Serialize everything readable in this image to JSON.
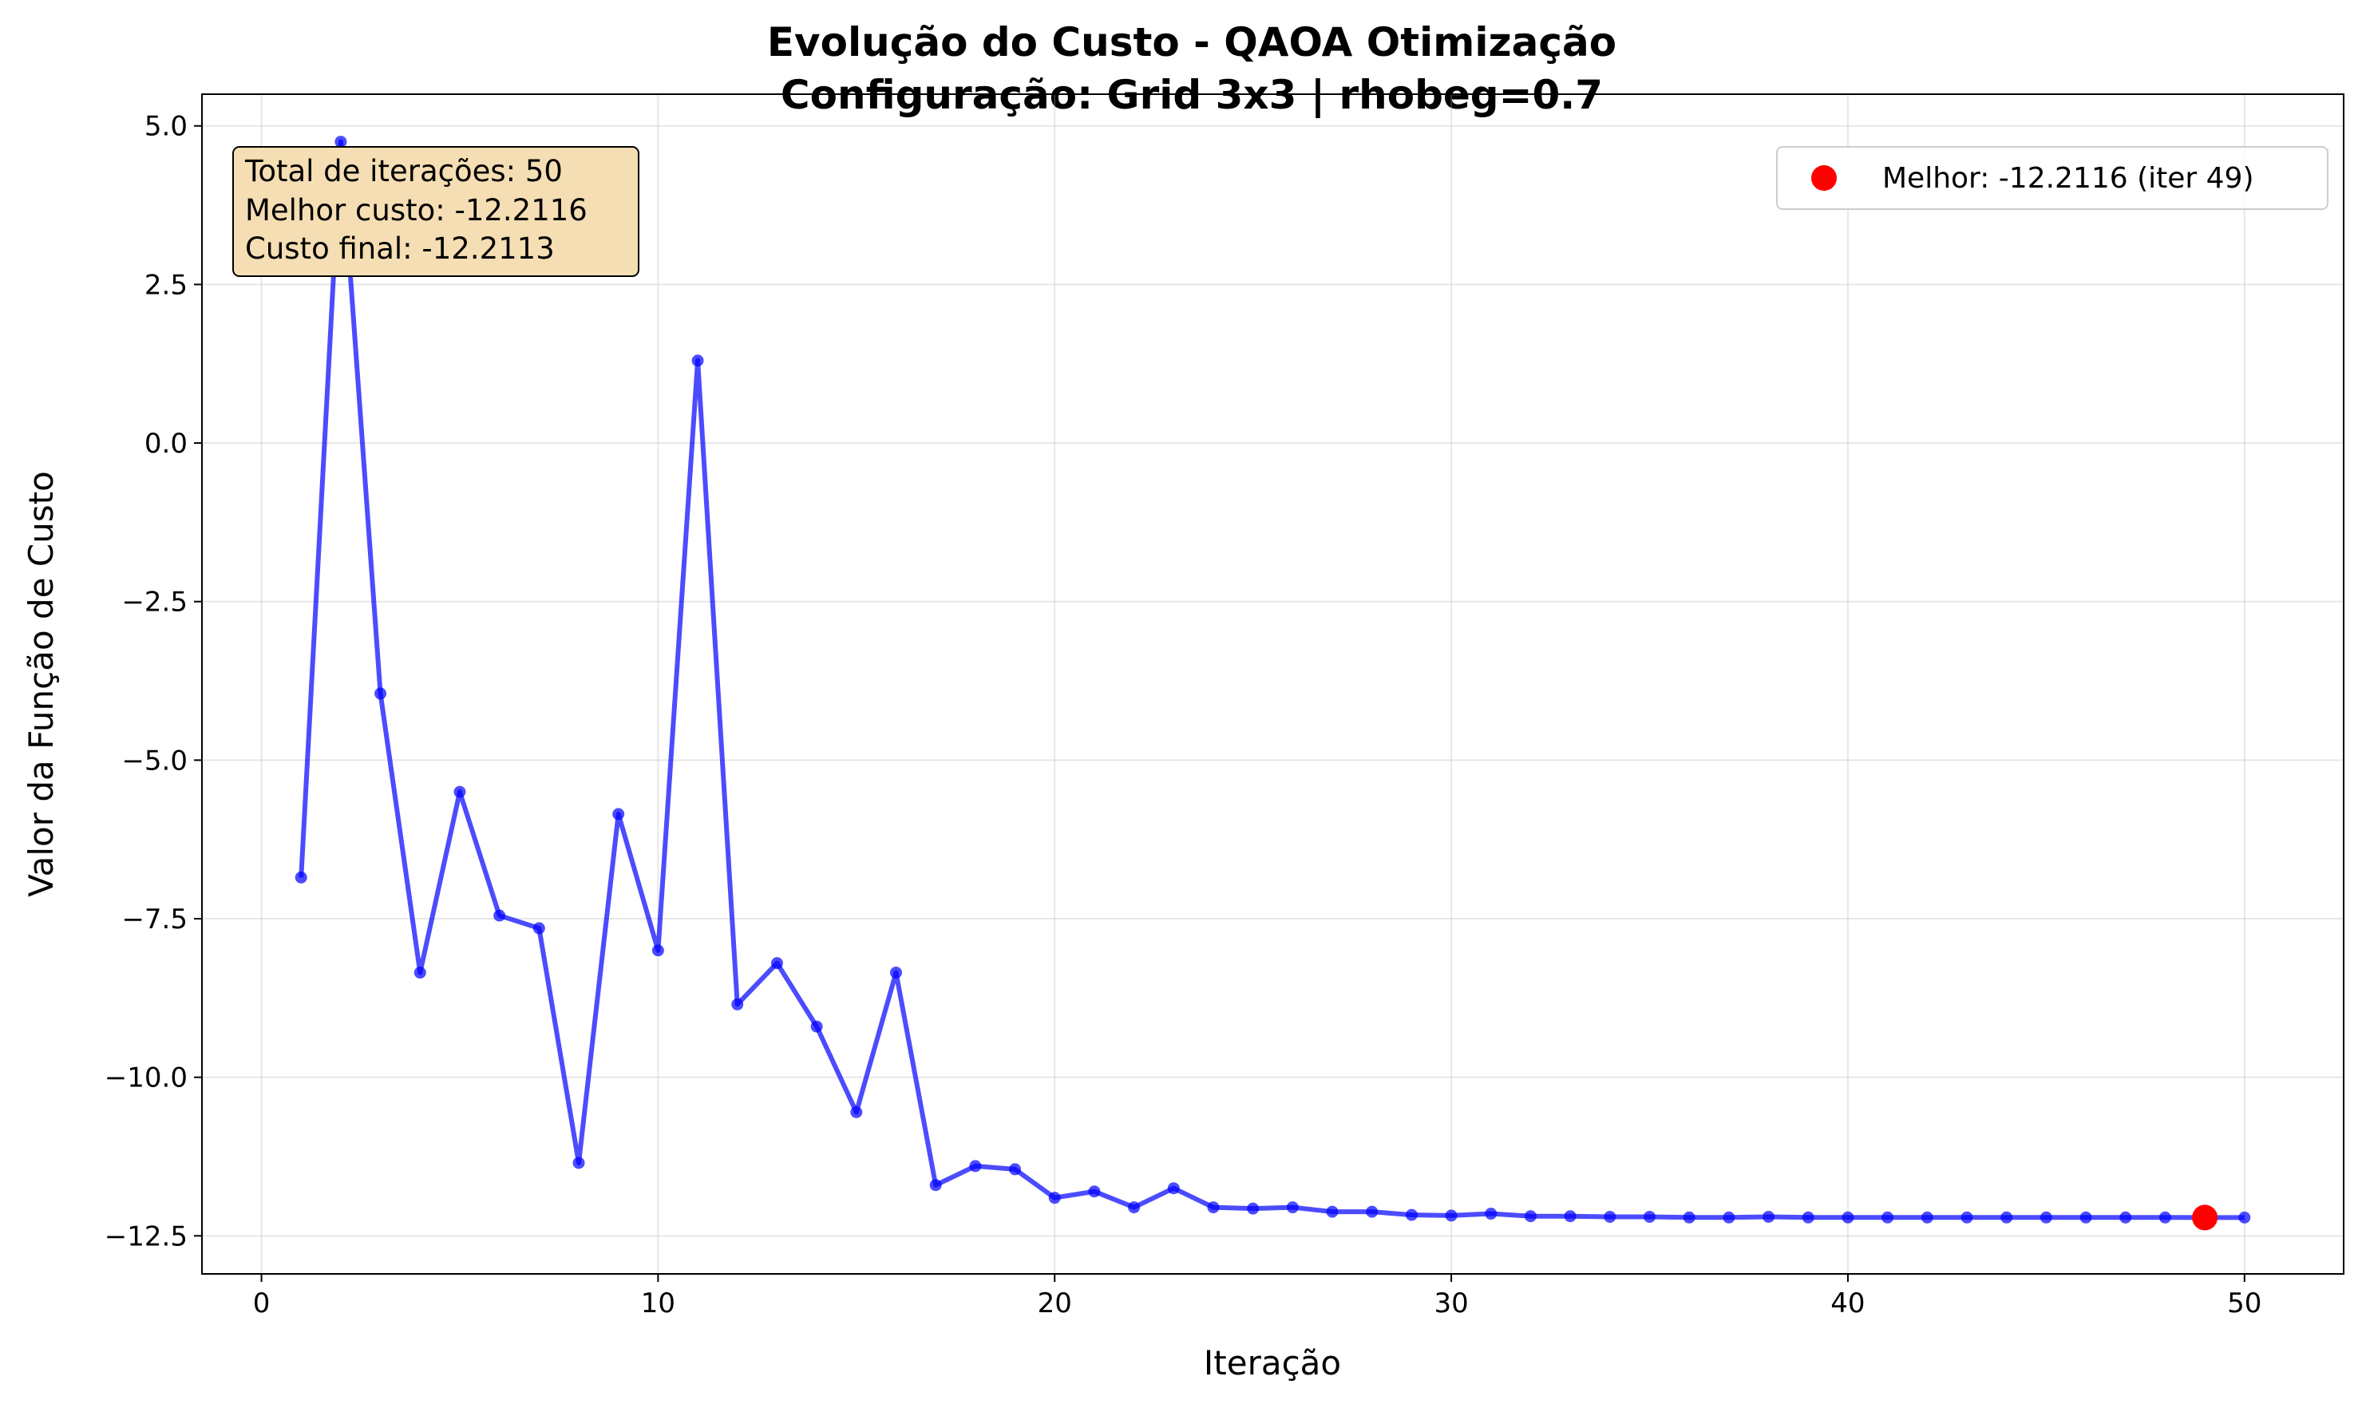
{
  "chart_data": {
    "type": "line",
    "title_line1": "Evolução do Custo - QAOA Otimização",
    "title_line2": "Configuração: Grid 3x3 | rhobeg=0.7",
    "xlabel": "Iteração",
    "ylabel": "Valor da Função de Custo",
    "xlim": [
      -1.5,
      52.5
    ],
    "ylim": [
      -13.1,
      5.5
    ],
    "xticks": [
      0,
      10,
      20,
      30,
      40,
      50
    ],
    "xtick_labels": [
      "0",
      "10",
      "20",
      "30",
      "40",
      "50"
    ],
    "yticks": [
      5.0,
      2.5,
      0.0,
      -2.5,
      -5.0,
      -7.5,
      -10.0,
      -12.5
    ],
    "ytick_labels": [
      "5.0",
      "2.5",
      "0.0",
      "−2.5",
      "−5.0",
      "−7.5",
      "−10.0",
      "−12.5"
    ],
    "grid": true,
    "series": [
      {
        "name": "Custo",
        "color": "#0000ff",
        "x": [
          1,
          2,
          3,
          4,
          5,
          6,
          7,
          8,
          9,
          10,
          11,
          12,
          13,
          14,
          15,
          16,
          17,
          18,
          19,
          20,
          21,
          22,
          23,
          24,
          25,
          26,
          27,
          28,
          29,
          30,
          31,
          32,
          33,
          34,
          35,
          36,
          37,
          38,
          39,
          40,
          41,
          42,
          43,
          44,
          45,
          46,
          47,
          48,
          49,
          50
        ],
        "values": [
          -6.85,
          4.75,
          -3.95,
          -8.35,
          -5.5,
          -7.45,
          -7.65,
          -11.35,
          -5.85,
          -8.0,
          1.3,
          -8.85,
          -8.2,
          -9.2,
          -10.55,
          -8.35,
          -11.7,
          -11.4,
          -11.45,
          -11.9,
          -11.8,
          -12.05,
          -11.75,
          -12.05,
          -12.07,
          -12.05,
          -12.12,
          -12.12,
          -12.17,
          -12.18,
          -12.15,
          -12.19,
          -12.19,
          -12.2,
          -12.2,
          -12.21,
          -12.21,
          -12.2,
          -12.21,
          -12.21,
          -12.21,
          -12.21,
          -12.21,
          -12.21,
          -12.21,
          -12.21,
          -12.21,
          -12.21,
          -12.2116,
          -12.2113
        ]
      }
    ],
    "best_point": {
      "x": 49,
      "y": -12.2116,
      "color": "#ff0000"
    },
    "legend": {
      "label": "Melhor: -12.2116 (iter 49)",
      "location": "upper-right"
    },
    "info_box": {
      "lines": [
        "Total de iterações: 50",
        "Melhor custo: -12.2116",
        "Custo final: -12.2113"
      ],
      "location": "upper-left",
      "background": "#f5deb3"
    }
  }
}
